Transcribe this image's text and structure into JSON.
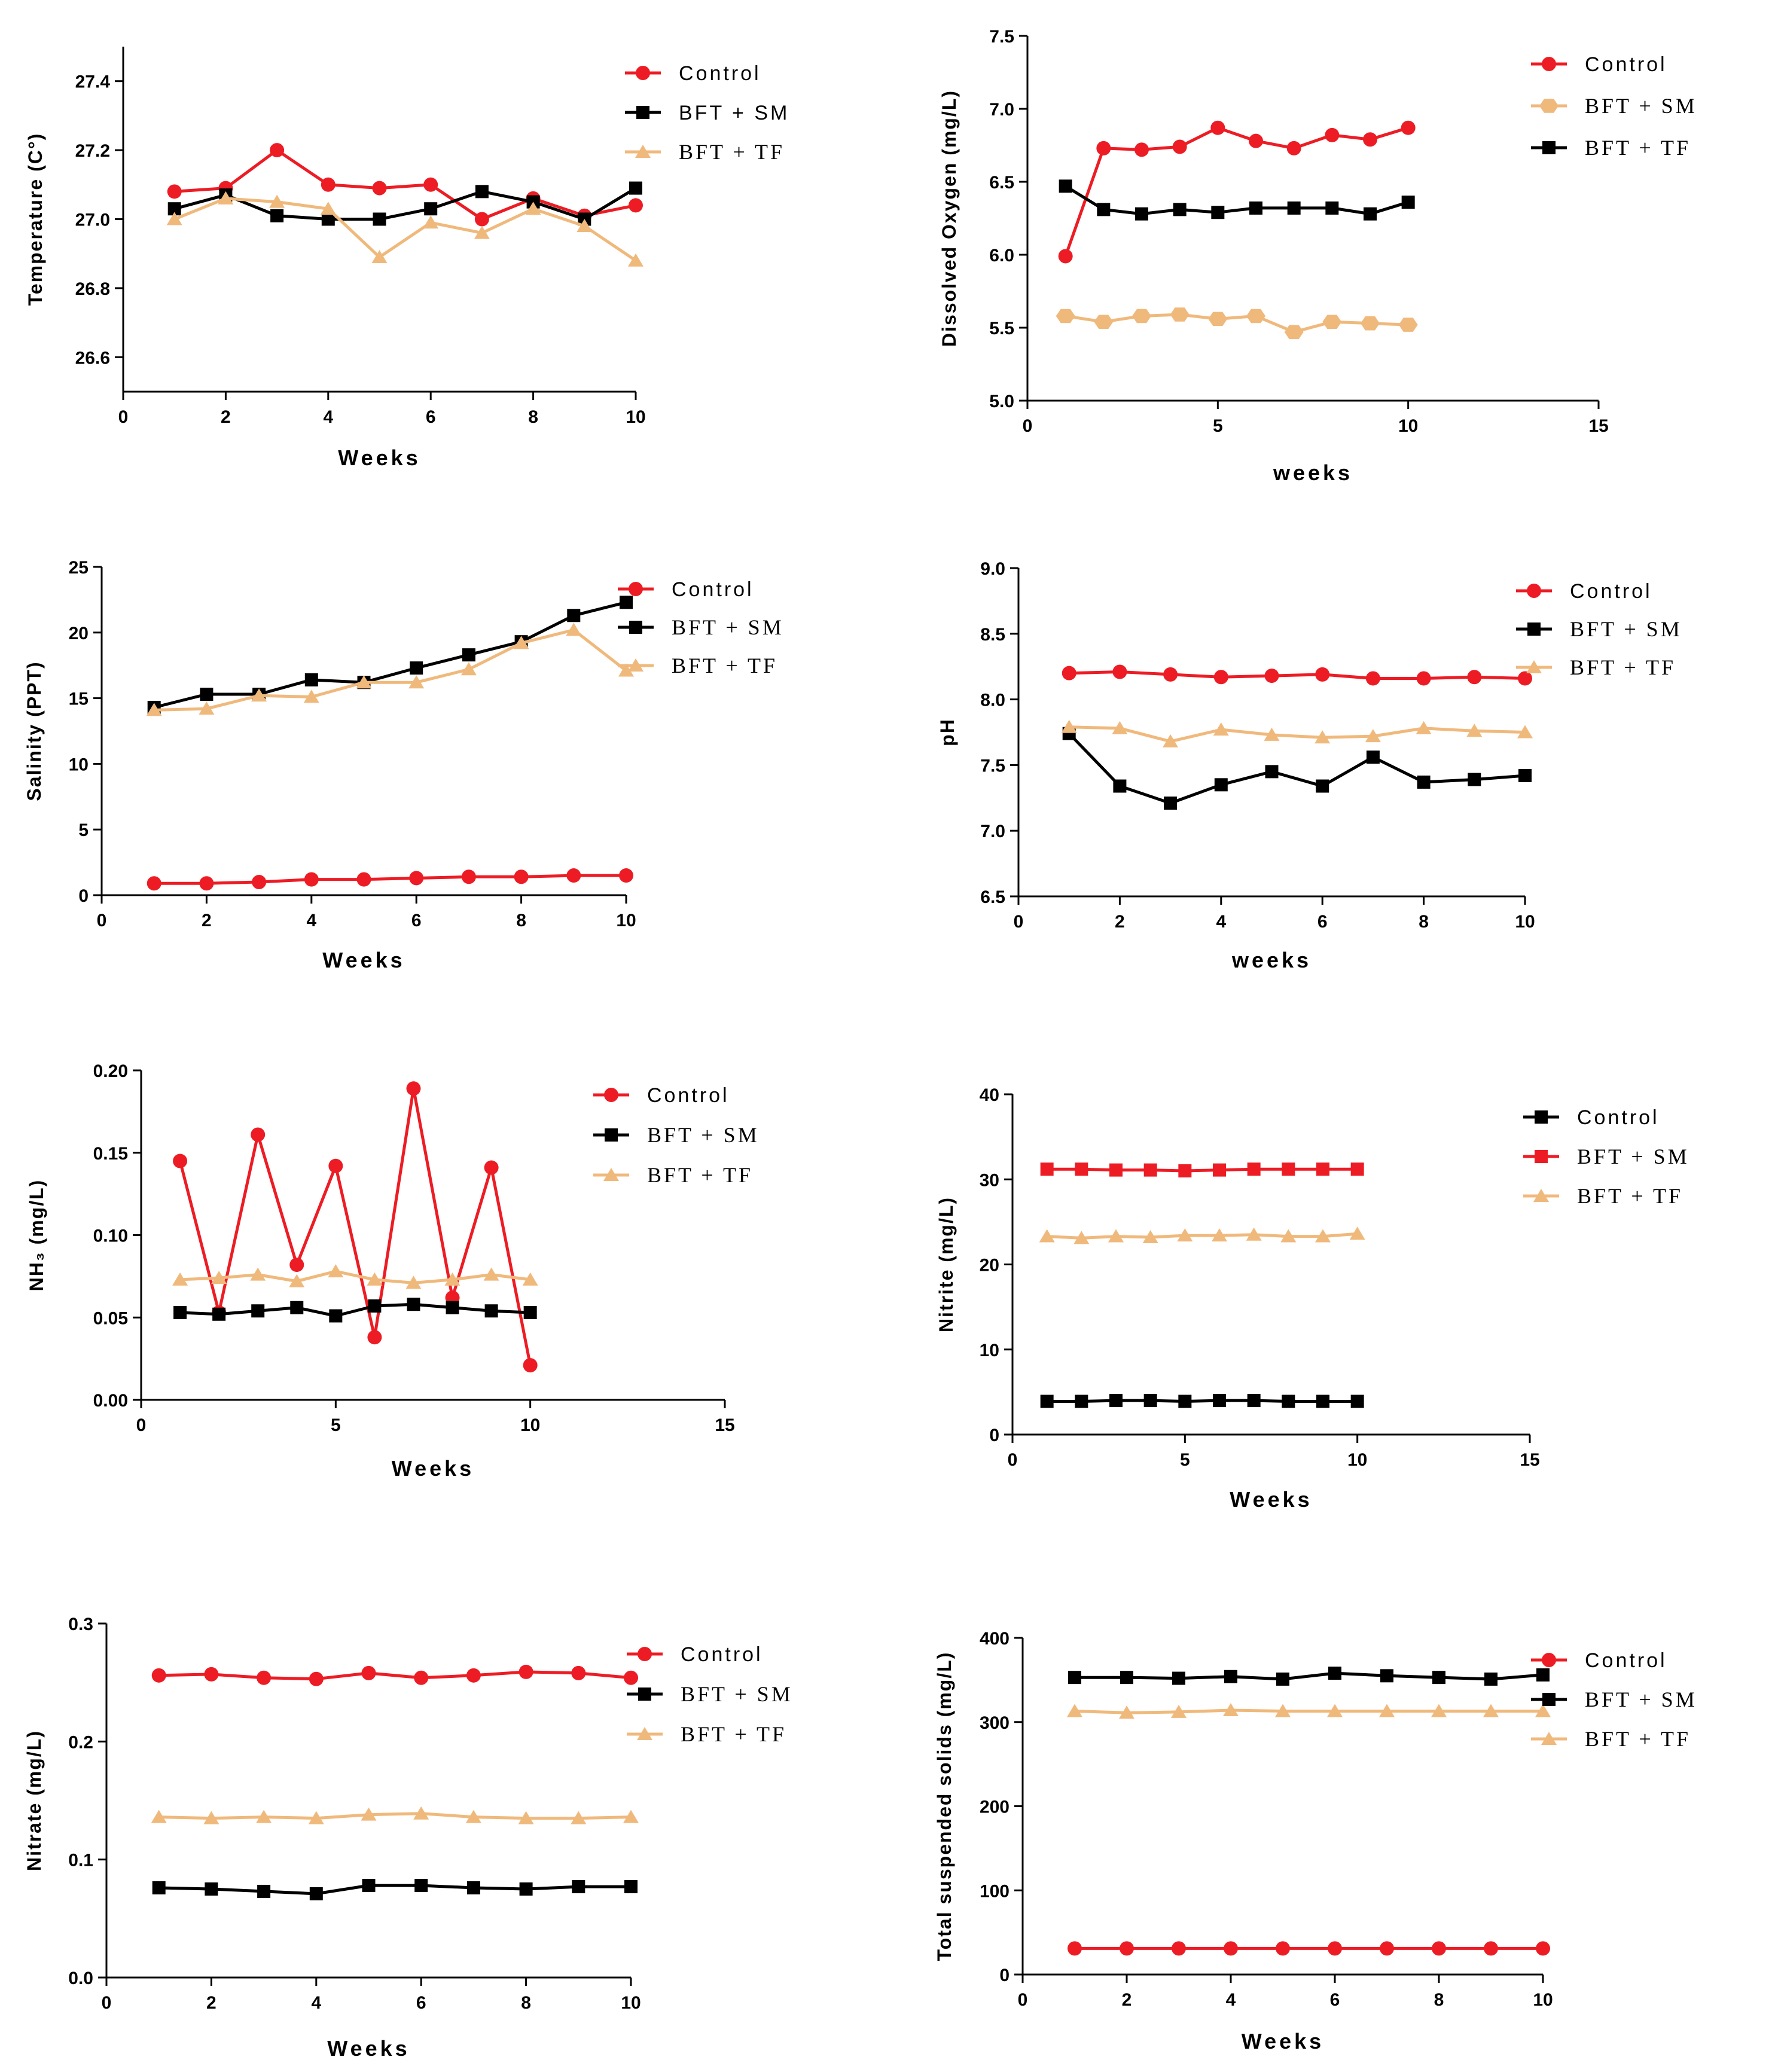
{
  "colors": {
    "red": "#ed1c24",
    "black": "#000000",
    "tan": "#f0b97c"
  },
  "chart_data": [
    {
      "id": "temperature",
      "type": "line",
      "ylabel": "Temperature (C°)",
      "xlabel": "Weeks",
      "xlim": [
        0,
        10
      ],
      "ylim": [
        26.5,
        27.5
      ],
      "xticks": [
        "0",
        "2",
        "4",
        "6",
        "8",
        "10"
      ],
      "yticks": [
        "26.6",
        "26.8",
        "27.0",
        "27.2",
        "27.4"
      ],
      "legend": "top-right",
      "series": [
        {
          "name": "Control",
          "color": "red",
          "marker": "circle",
          "x": [
            1,
            2,
            3,
            4,
            5,
            6,
            7,
            8,
            9,
            10
          ],
          "values": [
            27.08,
            27.09,
            27.2,
            27.1,
            27.09,
            27.1,
            27.0,
            27.06,
            27.01,
            27.04
          ]
        },
        {
          "name": "BFT + SM",
          "color": "black",
          "marker": "square",
          "x": [
            1,
            2,
            3,
            4,
            5,
            6,
            7,
            8,
            9,
            10
          ],
          "values": [
            27.03,
            27.07,
            27.01,
            27.0,
            27.0,
            27.03,
            27.08,
            27.05,
            27.0,
            27.09
          ]
        },
        {
          "name": "BFT + TF",
          "color": "tan",
          "marker": "triangle",
          "x": [
            1,
            2,
            3,
            4,
            5,
            6,
            7,
            8,
            9,
            10
          ],
          "values": [
            27.0,
            27.06,
            27.05,
            27.03,
            26.89,
            26.99,
            26.96,
            27.03,
            26.98,
            26.88
          ]
        }
      ]
    },
    {
      "id": "dissolved-oxygen",
      "type": "line",
      "ylabel": "Dissolved Oxygen (mg/L)",
      "xlabel": "weeks",
      "xlim": [
        0,
        15
      ],
      "ylim": [
        5.0,
        7.5
      ],
      "xticks": [
        "0",
        "5",
        "10",
        "15"
      ],
      "yticks": [
        "5.0",
        "5.5",
        "6.0",
        "6.5",
        "7.0",
        "7.5"
      ],
      "legend": "top-right",
      "legend_order": [
        0,
        2,
        1
      ],
      "series": [
        {
          "name": "Control",
          "color": "red",
          "marker": "circle",
          "x": [
            1,
            2,
            3,
            4,
            5,
            6,
            7,
            8,
            9,
            10
          ],
          "values": [
            5.99,
            6.73,
            6.72,
            6.74,
            6.87,
            6.78,
            6.73,
            6.82,
            6.79,
            6.87
          ]
        },
        {
          "name": "BFT + TF",
          "color": "black",
          "marker": "square",
          "x": [
            1,
            2,
            3,
            4,
            5,
            6,
            7,
            8,
            9,
            10
          ],
          "values": [
            6.47,
            6.31,
            6.28,
            6.31,
            6.29,
            6.32,
            6.32,
            6.32,
            6.28,
            6.36
          ]
        },
        {
          "name": "BFT + SM",
          "color": "tan",
          "marker": "hexagon",
          "x": [
            1,
            2,
            3,
            4,
            5,
            6,
            7,
            8,
            9,
            10
          ],
          "values": [
            5.58,
            5.54,
            5.58,
            5.59,
            5.56,
            5.58,
            5.47,
            5.54,
            5.53,
            5.52
          ]
        }
      ]
    },
    {
      "id": "salinity",
      "type": "line",
      "ylabel": "Salinity (PPT)",
      "xlabel": "Weeks",
      "xlim": [
        0,
        10
      ],
      "ylim": [
        0,
        25
      ],
      "xticks": [
        "0",
        "2",
        "4",
        "6",
        "8",
        "10"
      ],
      "yticks": [
        "0",
        "5",
        "10",
        "15",
        "20",
        "25"
      ],
      "legend": "top-right",
      "series": [
        {
          "name": "Control",
          "color": "red",
          "marker": "circle",
          "x": [
            1,
            2,
            3,
            4,
            5,
            6,
            7,
            8,
            9,
            10
          ],
          "values": [
            0.9,
            0.9,
            1.0,
            1.2,
            1.2,
            1.3,
            1.4,
            1.4,
            1.5,
            1.5
          ]
        },
        {
          "name": "BFT + SM",
          "color": "black",
          "marker": "square",
          "x": [
            1,
            2,
            3,
            4,
            5,
            6,
            7,
            8,
            9,
            10
          ],
          "values": [
            14.3,
            15.3,
            15.3,
            16.4,
            16.2,
            17.3,
            18.3,
            19.3,
            21.3,
            22.3
          ]
        },
        {
          "name": "BFT + TF",
          "color": "tan",
          "marker": "triangle",
          "x": [
            1,
            2,
            3,
            4,
            5,
            6,
            7,
            8,
            9,
            10
          ],
          "values": [
            14.1,
            14.2,
            15.2,
            15.1,
            16.2,
            16.2,
            17.2,
            19.2,
            20.2,
            17.1
          ]
        }
      ]
    },
    {
      "id": "ph",
      "type": "line",
      "ylabel": "pH",
      "xlabel": "weeks",
      "xlim": [
        0,
        10
      ],
      "ylim": [
        6.5,
        9.0
      ],
      "xticks": [
        "0",
        "2",
        "4",
        "6",
        "8",
        "10"
      ],
      "yticks": [
        "6.5",
        "7.0",
        "7.5",
        "8.0",
        "8.5",
        "9.0"
      ],
      "legend": "top-right",
      "series": [
        {
          "name": "Control",
          "color": "red",
          "marker": "circle",
          "x": [
            1,
            2,
            3,
            4,
            5,
            6,
            7,
            8,
            9,
            10
          ],
          "values": [
            8.2,
            8.21,
            8.19,
            8.17,
            8.18,
            8.19,
            8.16,
            8.16,
            8.17,
            8.16
          ]
        },
        {
          "name": "BFT + SM",
          "color": "black",
          "marker": "square",
          "x": [
            1,
            2,
            3,
            4,
            5,
            6,
            7,
            8,
            9,
            10
          ],
          "values": [
            7.74,
            7.34,
            7.21,
            7.35,
            7.45,
            7.34,
            7.56,
            7.37,
            7.39,
            7.42
          ]
        },
        {
          "name": "BFT + TF",
          "color": "tan",
          "marker": "triangle",
          "x": [
            1,
            2,
            3,
            4,
            5,
            6,
            7,
            8,
            9,
            10
          ],
          "values": [
            7.79,
            7.78,
            7.68,
            7.77,
            7.73,
            7.71,
            7.72,
            7.78,
            7.76,
            7.75
          ]
        }
      ]
    },
    {
      "id": "nh3",
      "type": "line",
      "ylabel": "NH₃ (mg/L)",
      "xlabel": "Weeks",
      "xlim": [
        0,
        15
      ],
      "ylim": [
        0,
        0.2
      ],
      "xticks": [
        "0",
        "5",
        "10",
        "15"
      ],
      "yticks": [
        "0.00",
        "0.05",
        "0.10",
        "0.15",
        "0.20"
      ],
      "legend": "top-right",
      "series": [
        {
          "name": "Control",
          "color": "red",
          "marker": "circle",
          "x": [
            1,
            2,
            3,
            4,
            5,
            6,
            7,
            8,
            9,
            10
          ],
          "values": [
            0.145,
            0.053,
            0.161,
            0.082,
            0.142,
            0.038,
            0.189,
            0.062,
            0.141,
            0.021
          ]
        },
        {
          "name": "BFT + SM",
          "color": "black",
          "marker": "square",
          "x": [
            1,
            2,
            3,
            4,
            5,
            6,
            7,
            8,
            9,
            10
          ],
          "values": [
            0.053,
            0.052,
            0.054,
            0.056,
            0.051,
            0.057,
            0.058,
            0.056,
            0.054,
            0.053
          ]
        },
        {
          "name": "BFT + TF",
          "color": "tan",
          "marker": "triangle",
          "x": [
            1,
            2,
            3,
            4,
            5,
            6,
            7,
            8,
            9,
            10
          ],
          "values": [
            0.073,
            0.074,
            0.076,
            0.072,
            0.078,
            0.073,
            0.071,
            0.073,
            0.076,
            0.073
          ]
        }
      ]
    },
    {
      "id": "nitrite",
      "type": "line",
      "ylabel": "Nitrite (mg/L)",
      "xlabel": "Weeks",
      "xlim": [
        0,
        15
      ],
      "ylim": [
        0,
        40
      ],
      "xticks": [
        "0",
        "5",
        "10",
        "15"
      ],
      "yticks": [
        "0",
        "10",
        "20",
        "30",
        "40"
      ],
      "legend": "top-right",
      "series": [
        {
          "name": "Control",
          "color": "black",
          "marker": "square",
          "x": [
            1,
            2,
            3,
            4,
            5,
            6,
            7,
            8,
            9,
            10
          ],
          "values": [
            3.9,
            3.9,
            4.0,
            4.0,
            3.9,
            4.0,
            4.0,
            3.9,
            3.9,
            3.9
          ]
        },
        {
          "name": "BFT + SM",
          "color": "red",
          "marker": "square",
          "x": [
            1,
            2,
            3,
            4,
            5,
            6,
            7,
            8,
            9,
            10
          ],
          "values": [
            31.2,
            31.2,
            31.1,
            31.1,
            31.0,
            31.1,
            31.2,
            31.2,
            31.2,
            31.2
          ]
        },
        {
          "name": "BFT + TF",
          "color": "tan",
          "marker": "triangle",
          "x": [
            1,
            2,
            3,
            4,
            5,
            6,
            7,
            8,
            9,
            10
          ],
          "values": [
            23.3,
            23.1,
            23.3,
            23.2,
            23.4,
            23.4,
            23.5,
            23.3,
            23.3,
            23.6
          ]
        }
      ]
    },
    {
      "id": "nitrate",
      "type": "line",
      "ylabel": "Nitrate (mg/L)",
      "xlabel": "Weeks",
      "xlim": [
        0,
        10
      ],
      "ylim": [
        0,
        0.3
      ],
      "xticks": [
        "0",
        "2",
        "4",
        "6",
        "8",
        "10"
      ],
      "yticks": [
        "0.0",
        "0.1",
        "0.2",
        "0.3"
      ],
      "legend": "top-right",
      "series": [
        {
          "name": "Control",
          "color": "red",
          "marker": "circle",
          "x": [
            1,
            2,
            3,
            4,
            5,
            6,
            7,
            8,
            9,
            10
          ],
          "values": [
            0.256,
            0.257,
            0.254,
            0.253,
            0.258,
            0.254,
            0.256,
            0.259,
            0.258,
            0.254
          ]
        },
        {
          "name": "BFT + SM",
          "color": "black",
          "marker": "square",
          "x": [
            1,
            2,
            3,
            4,
            5,
            6,
            7,
            8,
            9,
            10
          ],
          "values": [
            0.076,
            0.075,
            0.073,
            0.071,
            0.078,
            0.078,
            0.076,
            0.075,
            0.077,
            0.077
          ]
        },
        {
          "name": "BFT + TF",
          "color": "tan",
          "marker": "triangle",
          "x": [
            1,
            2,
            3,
            4,
            5,
            6,
            7,
            8,
            9,
            10
          ],
          "values": [
            0.136,
            0.135,
            0.136,
            0.135,
            0.138,
            0.139,
            0.136,
            0.135,
            0.135,
            0.136
          ]
        }
      ]
    },
    {
      "id": "tss",
      "type": "line",
      "ylabel": "Total suspended solids (mg/L)",
      "xlabel": "Weeks",
      "xlim": [
        0,
        10
      ],
      "ylim": [
        0,
        400
      ],
      "xticks": [
        "0",
        "2",
        "4",
        "6",
        "8",
        "10"
      ],
      "yticks": [
        "0",
        "100",
        "200",
        "300",
        "400"
      ],
      "legend": "top-right",
      "series": [
        {
          "name": "Control",
          "color": "red",
          "marker": "circle",
          "x": [
            1,
            2,
            3,
            4,
            5,
            6,
            7,
            8,
            9,
            10
          ],
          "values": [
            31,
            31,
            31,
            31,
            31,
            31,
            31,
            31,
            31,
            31
          ]
        },
        {
          "name": "BFT + SM",
          "color": "black",
          "marker": "square",
          "x": [
            1,
            2,
            3,
            4,
            5,
            6,
            7,
            8,
            9,
            10
          ],
          "values": [
            353,
            353,
            352,
            354,
            351,
            358,
            355,
            353,
            351,
            356
          ]
        },
        {
          "name": "BFT + TF",
          "color": "tan",
          "marker": "triangle",
          "x": [
            1,
            2,
            3,
            4,
            5,
            6,
            7,
            8,
            9,
            10
          ],
          "values": [
            313,
            311,
            312,
            314,
            313,
            313,
            313,
            313,
            313,
            313
          ]
        }
      ]
    }
  ]
}
